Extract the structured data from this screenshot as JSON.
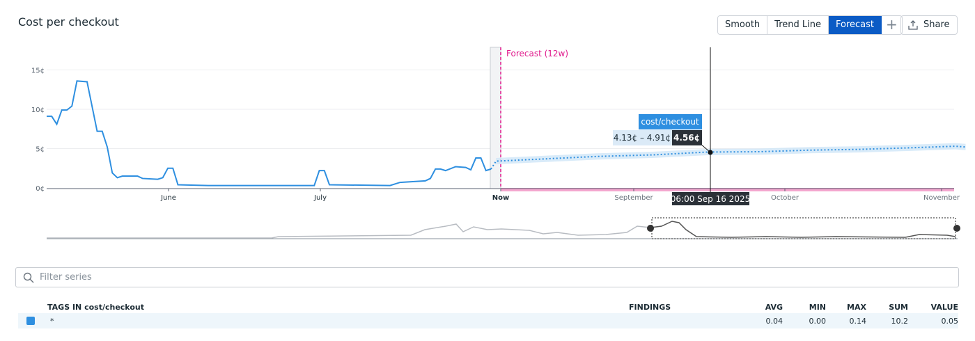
{
  "header": {
    "title": "Cost per checkout"
  },
  "toolbar": {
    "buttons": [
      "Smooth",
      "Trend Line",
      "Forecast"
    ],
    "active": "Forecast",
    "plus": "+",
    "share": "Share"
  },
  "colors": {
    "series": "#2e8fe0",
    "forecast_marker": "#e0198c",
    "active_button": "#0b5bc5",
    "tooltip_dark": "#2b3138"
  },
  "chart_data": {
    "type": "line",
    "title": "Cost per checkout",
    "y_ticks": [
      "0¢",
      "5¢",
      "10¢",
      "15¢"
    ],
    "ylim": [
      0,
      15
    ],
    "x_ticks": [
      "June",
      "July",
      "Now",
      "September",
      "October",
      "November"
    ],
    "grid": true,
    "series": [
      {
        "name": "cost/checkout",
        "historic": [
          [
            "2025-05-08",
            9.1
          ],
          [
            "2025-05-09",
            9.1
          ],
          [
            "2025-05-10",
            8.1
          ],
          [
            "2025-05-11",
            9.9
          ],
          [
            "2025-05-12",
            9.9
          ],
          [
            "2025-05-13",
            10.4
          ],
          [
            "2025-05-14",
            13.6
          ],
          [
            "2025-05-16",
            13.5
          ],
          [
            "2025-05-18",
            7.2
          ],
          [
            "2025-05-19",
            7.2
          ],
          [
            "2025-05-20",
            5.2
          ],
          [
            "2025-05-21",
            1.9
          ],
          [
            "2025-05-22",
            1.3
          ],
          [
            "2025-05-23",
            1.5
          ],
          [
            "2025-05-26",
            1.5
          ],
          [
            "2025-05-27",
            1.2
          ],
          [
            "2025-05-30",
            1.1
          ],
          [
            "2025-05-31",
            1.3
          ],
          [
            "2025-06-01",
            2.5
          ],
          [
            "2025-06-02",
            2.5
          ],
          [
            "2025-06-03",
            0.4
          ],
          [
            "2025-06-09",
            0.3
          ],
          [
            "2025-06-23",
            0.3
          ],
          [
            "2025-06-30",
            0.3
          ],
          [
            "2025-07-01",
            2.2
          ],
          [
            "2025-07-02",
            2.2
          ],
          [
            "2025-07-03",
            0.4
          ],
          [
            "2025-07-15",
            0.3
          ],
          [
            "2025-07-17",
            0.7
          ],
          [
            "2025-07-22",
            0.9
          ],
          [
            "2025-07-23",
            1.2
          ],
          [
            "2025-07-24",
            2.4
          ],
          [
            "2025-07-25",
            2.4
          ],
          [
            "2025-07-26",
            2.2
          ],
          [
            "2025-07-28",
            2.7
          ],
          [
            "2025-07-30",
            2.6
          ],
          [
            "2025-07-31",
            2.3
          ],
          [
            "2025-08-01",
            3.8
          ],
          [
            "2025-08-02",
            3.8
          ],
          [
            "2025-08-03",
            2.2
          ],
          [
            "2025-08-04",
            2.4
          ]
        ],
        "forecast": [
          [
            "2025-08-05",
            3.4
          ],
          [
            "2025-08-15",
            3.7
          ],
          [
            "2025-08-25",
            4.0
          ],
          [
            "2025-09-05",
            4.2
          ],
          [
            "2025-09-16",
            4.56
          ],
          [
            "2025-09-26",
            4.6
          ],
          [
            "2025-10-06",
            4.8
          ],
          [
            "2025-10-16",
            4.9
          ],
          [
            "2025-10-26",
            5.1
          ],
          [
            "2025-11-04",
            5.3
          ],
          [
            "2025-11-06",
            5.2
          ]
        ],
        "forecast_band": 0.4
      }
    ],
    "forecast_label": "Forecast (12w)",
    "tooltip": {
      "series": "cost/checkout",
      "range": "4.13¢ – 4.91¢",
      "value": "4.56¢",
      "time": "06:00 Sep 16 2025"
    }
  },
  "filter": {
    "placeholder": "Filter series"
  },
  "table": {
    "columns": [
      "TAGS IN cost/checkout",
      "FINDINGS",
      "AVG",
      "MIN",
      "MAX",
      "SUM",
      "VALUE"
    ],
    "rows": [
      {
        "tag": "*",
        "findings": "",
        "avg": "0.04",
        "min": "0.00",
        "max": "0.14",
        "sum": "10.2",
        "value": "0.05"
      }
    ]
  }
}
